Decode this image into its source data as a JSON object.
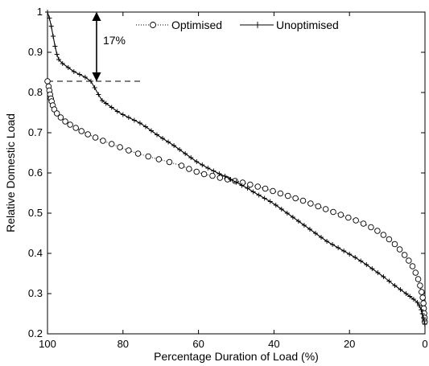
{
  "chart_data": {
    "type": "line",
    "xlabel": "Percentage Duration of Load (%)",
    "ylabel": "Relative Domestic Load",
    "xlim": [
      100,
      0
    ],
    "ylim": [
      0.2,
      1.0
    ],
    "x_reversed": true,
    "xticks": [
      "100",
      "80",
      "60",
      "40",
      "20",
      "0"
    ],
    "yticks": [
      "0.2",
      "0.3",
      "0.4",
      "0.5",
      "0.6",
      "0.7",
      "0.8",
      "0.9",
      "1"
    ],
    "grid": false,
    "legend_position": "top",
    "series": [
      {
        "name": "Optimised",
        "style": "dotted line with circle markers",
        "color": "#000000",
        "points": [
          [
            100,
            0.828
          ],
          [
            99.7,
            0.815
          ],
          [
            99.5,
            0.805
          ],
          [
            99.3,
            0.795
          ],
          [
            99.1,
            0.785
          ],
          [
            98.9,
            0.778
          ],
          [
            98.6,
            0.768
          ],
          [
            98.2,
            0.758
          ],
          [
            97.5,
            0.748
          ],
          [
            96.5,
            0.738
          ],
          [
            95.3,
            0.728
          ],
          [
            94.0,
            0.72
          ],
          [
            92.5,
            0.712
          ],
          [
            91.0,
            0.704
          ],
          [
            89.3,
            0.696
          ],
          [
            87.3,
            0.688
          ],
          [
            85.3,
            0.68
          ],
          [
            83.0,
            0.672
          ],
          [
            80.8,
            0.664
          ],
          [
            78.5,
            0.656
          ],
          [
            76.0,
            0.648
          ],
          [
            73.3,
            0.641
          ],
          [
            70.5,
            0.634
          ],
          [
            67.7,
            0.627
          ],
          [
            64.5,
            0.618
          ],
          [
            62.5,
            0.61
          ],
          [
            60.5,
            0.603
          ],
          [
            58.5,
            0.597
          ],
          [
            56.3,
            0.593
          ],
          [
            54.3,
            0.588
          ],
          [
            52.3,
            0.584
          ],
          [
            50.3,
            0.58
          ],
          [
            48.3,
            0.576
          ],
          [
            46.3,
            0.571
          ],
          [
            44.3,
            0.566
          ],
          [
            42.3,
            0.561
          ],
          [
            40.3,
            0.555
          ],
          [
            38.3,
            0.549
          ],
          [
            36.3,
            0.543
          ],
          [
            34.3,
            0.537
          ],
          [
            32.3,
            0.531
          ],
          [
            30.3,
            0.524
          ],
          [
            28.3,
            0.517
          ],
          [
            26.3,
            0.51
          ],
          [
            24.3,
            0.503
          ],
          [
            22.3,
            0.496
          ],
          [
            20.3,
            0.489
          ],
          [
            18.3,
            0.482
          ],
          [
            16.3,
            0.474
          ],
          [
            14.3,
            0.465
          ],
          [
            12.6,
            0.456
          ],
          [
            11.0,
            0.446
          ],
          [
            9.5,
            0.435
          ],
          [
            8.0,
            0.423
          ],
          [
            6.7,
            0.41
          ],
          [
            5.4,
            0.396
          ],
          [
            4.3,
            0.382
          ],
          [
            3.3,
            0.368
          ],
          [
            2.5,
            0.352
          ],
          [
            1.8,
            0.336
          ],
          [
            1.3,
            0.32
          ],
          [
            0.9,
            0.304
          ],
          [
            0.6,
            0.29
          ],
          [
            0.4,
            0.276
          ],
          [
            0.3,
            0.263
          ],
          [
            0.2,
            0.251
          ],
          [
            0.1,
            0.24
          ],
          [
            0.05,
            0.23
          ]
        ]
      },
      {
        "name": "Unoptimised",
        "style": "solid line with plus markers",
        "color": "#000000",
        "points": [
          [
            100,
            1.0
          ],
          [
            99.5,
            0.985
          ],
          [
            99.0,
            0.965
          ],
          [
            98.5,
            0.94
          ],
          [
            98.0,
            0.915
          ],
          [
            97.5,
            0.895
          ],
          [
            97.0,
            0.882
          ],
          [
            96.0,
            0.872
          ],
          [
            94.5,
            0.862
          ],
          [
            93.0,
            0.852
          ],
          [
            91.5,
            0.845
          ],
          [
            90.0,
            0.838
          ],
          [
            88.5,
            0.828
          ],
          [
            87.5,
            0.812
          ],
          [
            86.5,
            0.795
          ],
          [
            85.5,
            0.78
          ],
          [
            84.5,
            0.773
          ],
          [
            83.0,
            0.763
          ],
          [
            81.5,
            0.753
          ],
          [
            80.0,
            0.745
          ],
          [
            78.5,
            0.738
          ],
          [
            77.0,
            0.731
          ],
          [
            75.5,
            0.724
          ],
          [
            74.0,
            0.715
          ],
          [
            72.5,
            0.705
          ],
          [
            71.0,
            0.695
          ],
          [
            69.5,
            0.686
          ],
          [
            68.0,
            0.677
          ],
          [
            66.5,
            0.668
          ],
          [
            65.0,
            0.658
          ],
          [
            63.5,
            0.648
          ],
          [
            62.0,
            0.638
          ],
          [
            60.5,
            0.628
          ],
          [
            59.0,
            0.62
          ],
          [
            57.5,
            0.612
          ],
          [
            56.0,
            0.605
          ],
          [
            54.5,
            0.598
          ],
          [
            53.0,
            0.592
          ],
          [
            51.5,
            0.584
          ],
          [
            50.0,
            0.577
          ],
          [
            48.5,
            0.569
          ],
          [
            47.0,
            0.562
          ],
          [
            45.5,
            0.553
          ],
          [
            44.0,
            0.545
          ],
          [
            42.5,
            0.537
          ],
          [
            41.0,
            0.529
          ],
          [
            39.5,
            0.52
          ],
          [
            38.0,
            0.51
          ],
          [
            36.5,
            0.5
          ],
          [
            35.0,
            0.49
          ],
          [
            33.5,
            0.48
          ],
          [
            32.0,
            0.47
          ],
          [
            30.5,
            0.46
          ],
          [
            29.0,
            0.45
          ],
          [
            27.5,
            0.44
          ],
          [
            26.0,
            0.43
          ],
          [
            24.5,
            0.422
          ],
          [
            23.0,
            0.414
          ],
          [
            21.5,
            0.406
          ],
          [
            20.0,
            0.398
          ],
          [
            18.5,
            0.39
          ],
          [
            17.0,
            0.381
          ],
          [
            15.5,
            0.372
          ],
          [
            14.0,
            0.362
          ],
          [
            12.5,
            0.352
          ],
          [
            11.0,
            0.342
          ],
          [
            9.5,
            0.331
          ],
          [
            8.0,
            0.32
          ],
          [
            6.5,
            0.31
          ],
          [
            5.0,
            0.3
          ],
          [
            4.0,
            0.293
          ],
          [
            3.0,
            0.286
          ],
          [
            2.0,
            0.278
          ],
          [
            1.5,
            0.27
          ],
          [
            1.0,
            0.26
          ],
          [
            0.7,
            0.25
          ],
          [
            0.4,
            0.24
          ],
          [
            0.2,
            0.232
          ],
          [
            0.05,
            0.224
          ]
        ]
      }
    ],
    "annotations": [
      {
        "text": "17%",
        "type": "double-arrow",
        "x": 87,
        "y1": 1.0,
        "y2": 0.828
      },
      {
        "type": "dashed-line",
        "x1": 100,
        "x2": 75,
        "y": 0.828
      }
    ]
  }
}
